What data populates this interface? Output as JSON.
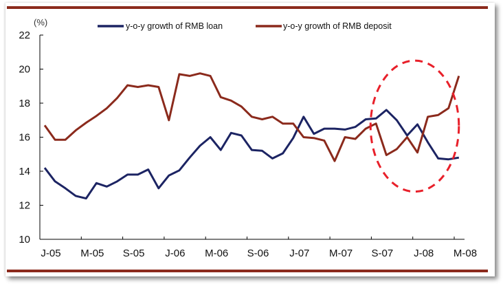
{
  "chart_data": {
    "type": "line",
    "title": "",
    "ylabel": "(%)",
    "xlabel": "",
    "ylim": [
      10,
      22
    ],
    "yticks": [
      10,
      12,
      14,
      16,
      18,
      20,
      22
    ],
    "ytick_labels": [
      "10",
      "12",
      "14",
      "16",
      "18",
      "20",
      "22"
    ],
    "xtick_labels": [
      "J-05",
      "M-05",
      "S-05",
      "J-06",
      "M-06",
      "S-06",
      "J-07",
      "M-07",
      "S-07",
      "J-08",
      "M-08"
    ],
    "grid": false,
    "legend_position": "top",
    "x_points": 41,
    "series": [
      {
        "name": "y-o-y growth of RMB loan",
        "color": "#1c2463",
        "values": [
          14.2,
          13.4,
          13.0,
          12.55,
          12.4,
          13.3,
          13.1,
          13.4,
          13.8,
          13.8,
          14.1,
          13.0,
          13.75,
          14.05,
          14.8,
          15.5,
          16.0,
          15.25,
          16.25,
          16.1,
          15.25,
          15.2,
          14.75,
          15.05,
          15.95,
          17.2,
          16.2,
          16.5,
          16.5,
          16.45,
          16.6,
          17.05,
          17.1,
          17.6,
          17.0,
          16.1,
          16.75,
          15.7,
          14.75,
          14.7,
          14.8
        ]
      },
      {
        "name": "y-o-y growth of RMB deposit",
        "color": "#8b2a1c",
        "values": [
          16.7,
          15.85,
          15.85,
          16.4,
          16.85,
          17.25,
          17.7,
          18.3,
          19.05,
          18.95,
          19.05,
          18.95,
          17.0,
          19.7,
          19.6,
          19.75,
          19.6,
          18.35,
          18.15,
          17.8,
          17.2,
          17.05,
          17.2,
          16.8,
          16.8,
          16.0,
          15.95,
          15.8,
          14.6,
          16.0,
          15.9,
          16.5,
          16.8,
          14.95,
          15.3,
          16.0,
          15.1,
          17.2,
          17.3,
          17.7,
          19.6
        ]
      }
    ],
    "annotations": [
      {
        "type": "dashed-ellipse",
        "color": "#e8202a",
        "x_start_index": 32,
        "x_end_index": 40,
        "y_range": [
          12.8,
          20.5
        ]
      }
    ]
  }
}
